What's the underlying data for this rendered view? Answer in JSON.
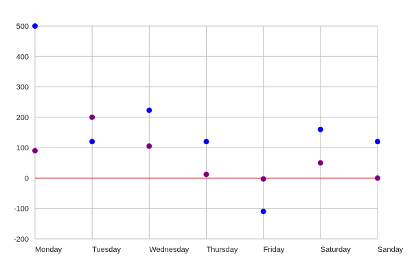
{
  "chart_data": {
    "type": "scatter",
    "title": "",
    "xlabel": "",
    "ylabel": "",
    "categories": [
      "Monday",
      "Tuesday",
      "Wednesday",
      "Thursday",
      "Friday",
      "Saturday",
      "Sanday"
    ],
    "ylim": [
      -200,
      500
    ],
    "yticks": [
      500,
      400,
      300,
      200,
      100,
      0,
      -100,
      -200
    ],
    "grid": true,
    "legend": "none",
    "series": [
      {
        "color": "#0000ff",
        "values": [
          500,
          120,
          223,
          120,
          -110,
          160,
          120
        ]
      },
      {
        "color": "#800080",
        "values": [
          90,
          200,
          105,
          12,
          -3,
          50,
          0
        ]
      }
    ],
    "zero_line_color": "#cc0000",
    "grid_color": "#c0c0c0"
  }
}
